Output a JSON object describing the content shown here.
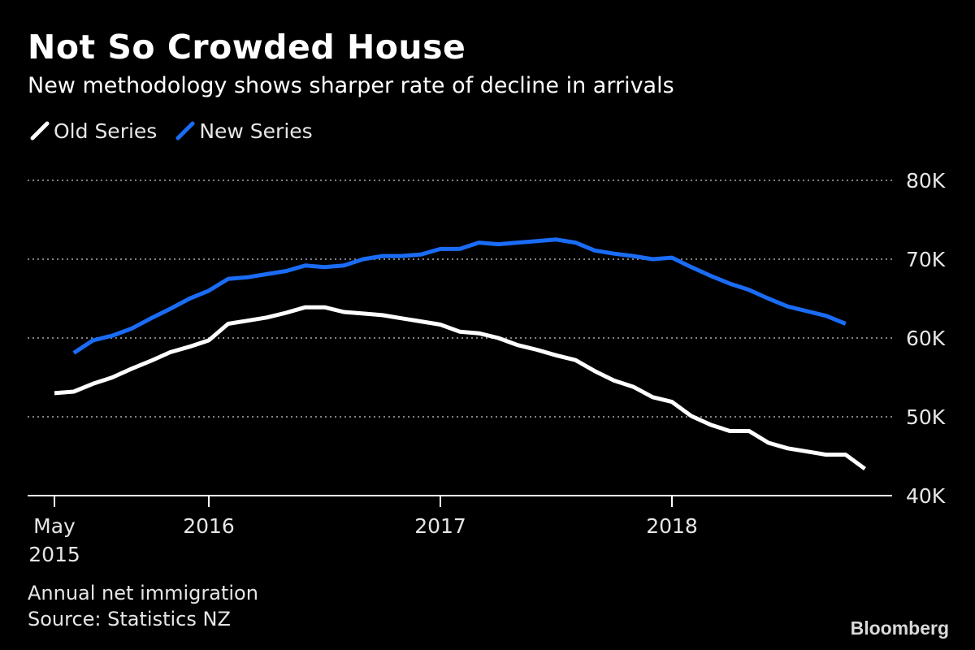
{
  "title": "Not So Crowded House",
  "subtitle": "New methodology shows sharper rate of decline in arrivals",
  "legend": [
    {
      "label": "Old Series",
      "color": "#ffffff"
    },
    {
      "label": "New Series",
      "color": "#1a6cf5"
    }
  ],
  "footnote": {
    "measure": "Annual net immigration",
    "source": "Source: Statistics NZ"
  },
  "brand": "Bloomberg",
  "colors": {
    "background": "#000000",
    "old_series": "#ffffff",
    "new_series": "#1a6cf5",
    "gridline": "#808080",
    "text": "#e6e6e6"
  },
  "chart_data": {
    "type": "line",
    "title": "Not So Crowded House",
    "subtitle": "New methodology shows sharper rate of decline in arrivals",
    "x_unit": "month",
    "x_start": "2015-05",
    "x_range": [
      "2015-05",
      "2018-11"
    ],
    "y_range": [
      40000,
      80000
    ],
    "y_ticks": [
      {
        "value": 40000,
        "label": "40K"
      },
      {
        "value": 50000,
        "label": "50K"
      },
      {
        "value": 60000,
        "label": "60K"
      },
      {
        "value": 70000,
        "label": "70K"
      },
      {
        "value": 80000,
        "label": "80K"
      }
    ],
    "x_ticks": [
      {
        "date": "2015-05",
        "lines": [
          "May",
          "2015"
        ]
      },
      {
        "date": "2016-01",
        "lines": [
          "2016"
        ]
      },
      {
        "date": "2017-01",
        "lines": [
          "2017"
        ]
      },
      {
        "date": "2018-01",
        "lines": [
          "2018"
        ]
      }
    ],
    "grid": "horizontal dotted",
    "legend_position": "top-left",
    "series": [
      {
        "name": "Old Series",
        "color": "#ffffff",
        "start": "2015-05",
        "values": [
          53000,
          53200,
          54200,
          55000,
          56100,
          57100,
          58200,
          58900,
          59700,
          61800,
          62200,
          62600,
          63200,
          63900,
          63900,
          63300,
          63100,
          62900,
          62500,
          62100,
          61700,
          60800,
          60600,
          60000,
          59100,
          58500,
          57800,
          57200,
          55800,
          54600,
          53800,
          52500,
          51900,
          50100,
          49000,
          48200,
          48200,
          46700,
          46000,
          45600,
          45200,
          45200,
          43400
        ]
      },
      {
        "name": "New Series",
        "color": "#1a6cf5",
        "start": "2015-06",
        "values": [
          58100,
          59700,
          60300,
          61200,
          62500,
          63700,
          65000,
          66000,
          67500,
          67700,
          68100,
          68500,
          69200,
          69000,
          69200,
          70000,
          70400,
          70400,
          70600,
          71300,
          71300,
          72100,
          71900,
          72100,
          72300,
          72500,
          72100,
          71100,
          70700,
          70400,
          70000,
          70200,
          69000,
          67900,
          66900,
          66100,
          65000,
          64000,
          63400,
          62800,
          61800
        ]
      }
    ]
  }
}
